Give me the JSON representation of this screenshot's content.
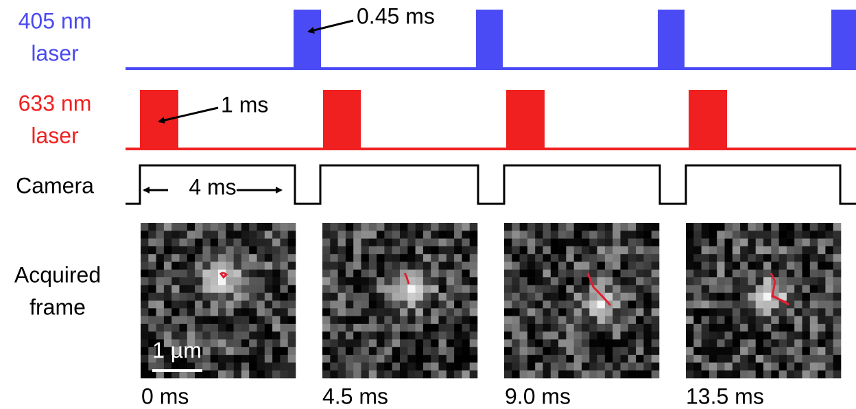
{
  "rows": [
    {
      "label": [
        "405 nm",
        "laser"
      ]
    },
    {
      "label": [
        "633 nm",
        "laser"
      ]
    },
    {
      "label": [
        "Camera"
      ]
    },
    {
      "label": [
        "Acquired",
        "frame"
      ]
    }
  ],
  "annotations": {
    "blue_pulse": "0.45 ms",
    "red_pulse": "1 ms",
    "exposure": "4 ms"
  },
  "scale_bar": "1 µm",
  "frames": [
    {
      "time": "0 ms"
    },
    {
      "time": "4.5 ms"
    },
    {
      "time": "9.0 ms"
    },
    {
      "time": "13.5 ms"
    }
  ]
}
